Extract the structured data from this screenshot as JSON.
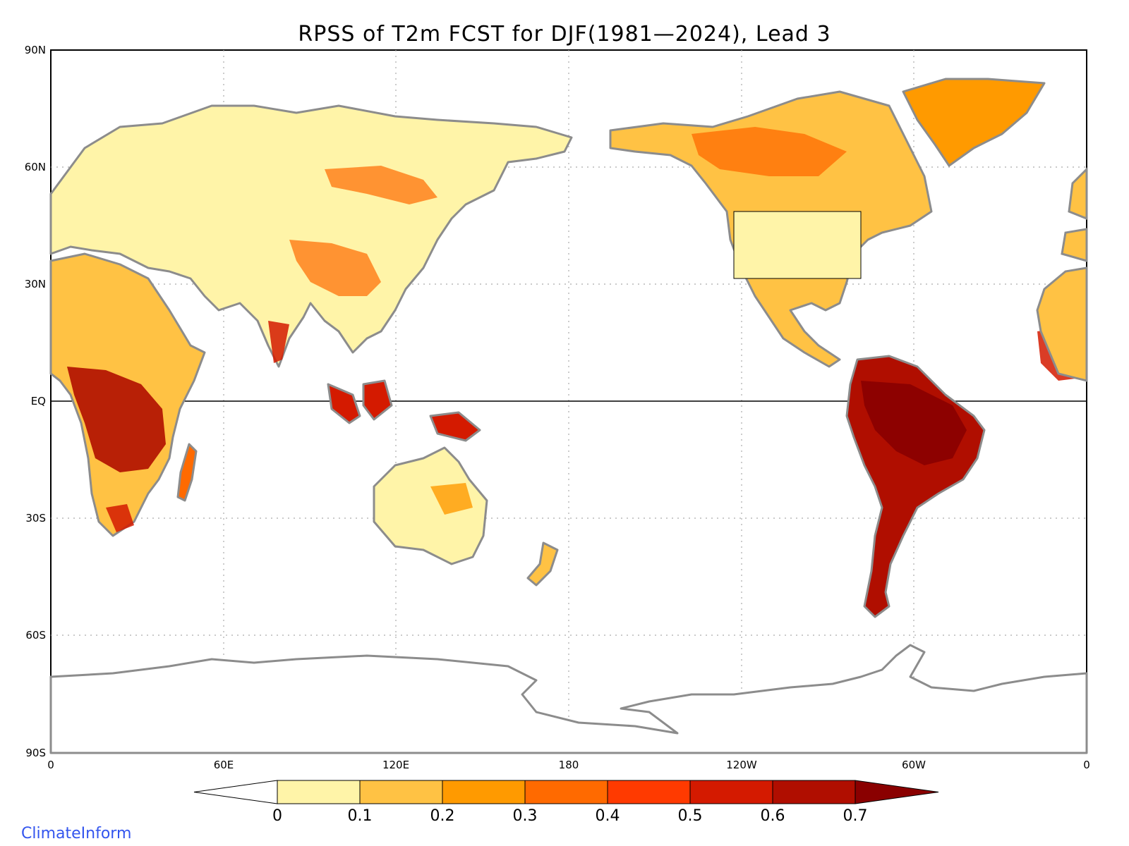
{
  "map": {
    "title": "RPSS of T2m FCST for DJF(1981—2024), Lead 3",
    "lat_labels": [
      "90N",
      "60N",
      "30N",
      "EQ",
      "30S",
      "60S",
      "90S"
    ],
    "lon_labels": [
      "0",
      "60E",
      "120E",
      "180",
      "120W",
      "60W",
      "0"
    ],
    "projection": "cylindrical equidistant, centered 180",
    "grid": "dotted"
  },
  "colorbar": {
    "tick_labels": [
      "0",
      "0.1",
      "0.2",
      "0.3",
      "0.4",
      "0.5",
      "0.6",
      "0.7"
    ],
    "colors": [
      "#ffffff",
      "#fff4a8",
      "#ffc244",
      "#ff9a00",
      "#ff6a00",
      "#ff3a00",
      "#d41a00",
      "#b00e00",
      "#8a0000"
    ]
  },
  "brand": "ClimateInform"
}
